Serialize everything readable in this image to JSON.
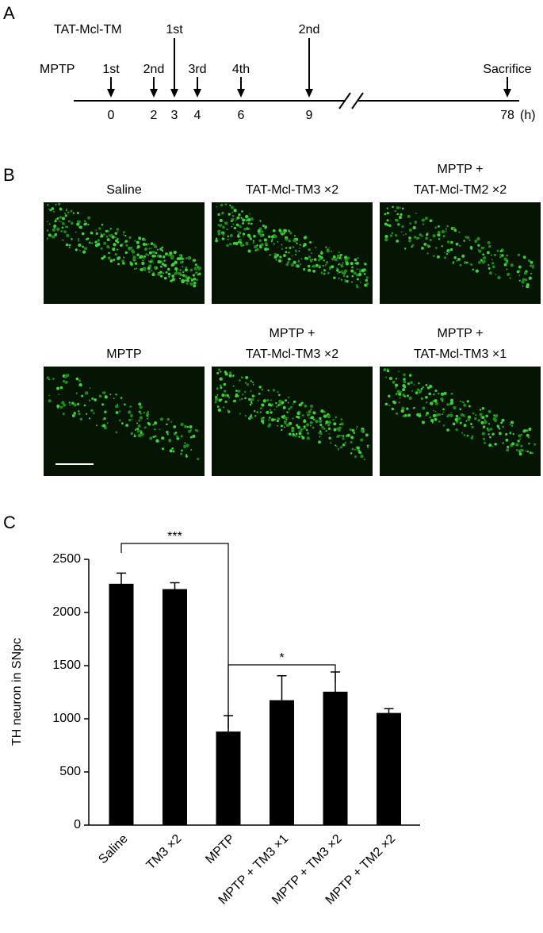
{
  "panel_labels": [
    "A",
    "B",
    "C"
  ],
  "timeline": {
    "rows": [
      "TAT-Mcl-TM",
      "MPTP"
    ],
    "events": [
      {
        "row": 1,
        "label": "1st",
        "time": "0"
      },
      {
        "row": 1,
        "label": "2nd",
        "time": "2"
      },
      {
        "row": 0,
        "label": "1st",
        "time": "3"
      },
      {
        "row": 1,
        "label": "3rd",
        "time": "4"
      },
      {
        "row": 1,
        "label": "4th",
        "time": "6"
      },
      {
        "row": 0,
        "label": "2nd",
        "time": "9"
      },
      {
        "row": 1,
        "label": "Sacrifice",
        "time": "78"
      }
    ],
    "unit": "(h)"
  },
  "micrographs": [
    [
      "Saline"
    ],
    [
      "TAT-Mcl-TM3 ×2"
    ],
    [
      "MPTP +",
      "TAT-Mcl-TM2 ×2"
    ],
    [
      "MPTP"
    ],
    [
      "MPTP +",
      "TAT-Mcl-TM3 ×2"
    ],
    [
      "MPTP +",
      "TAT-Mcl-TM3 ×1"
    ]
  ],
  "chart_data": {
    "type": "bar",
    "ylabel": "TH neuron in SNpc",
    "categories": [
      "Saline",
      "TM3 ×2",
      "MPTP",
      "MPTP + TM3 ×1",
      "MPTP + TM3 ×2",
      "MPTP + TM2 ×2"
    ],
    "values": [
      2270,
      2220,
      880,
      1175,
      1255,
      1055
    ],
    "errors": [
      100,
      60,
      150,
      230,
      185,
      40
    ],
    "color": "#000000",
    "ylim": [
      0,
      2500
    ],
    "yticks": [
      0,
      500,
      1000,
      1500,
      2000,
      2500
    ],
    "annotations": [
      "***",
      "*"
    ]
  }
}
